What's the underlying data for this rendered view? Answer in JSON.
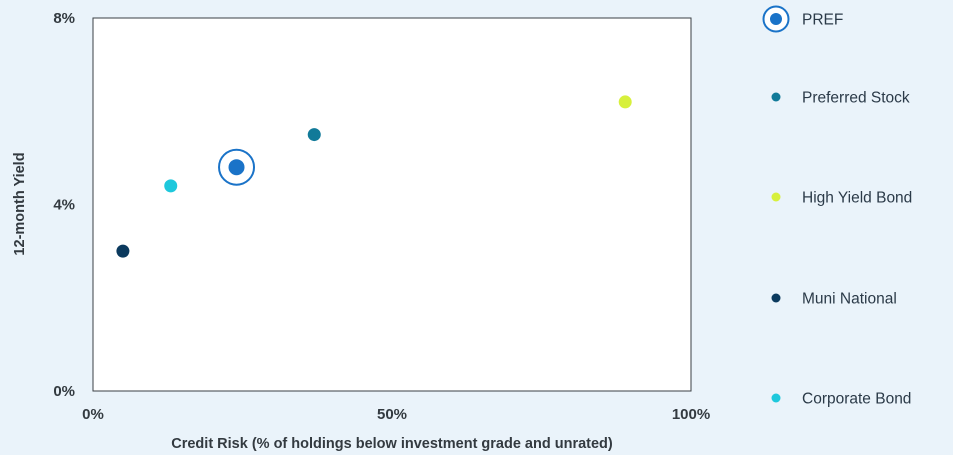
{
  "chart_data": {
    "type": "scatter",
    "title": "",
    "xlabel": "Credit Risk (% of holdings below investment grade and unrated)",
    "ylabel": "12-month Yield",
    "xlim": [
      0,
      100
    ],
    "ylim": [
      0,
      8
    ],
    "x_ticks": [
      {
        "value": 0,
        "label": "0%"
      },
      {
        "value": 50,
        "label": "50%"
      },
      {
        "value": 100,
        "label": "100%"
      }
    ],
    "y_ticks": [
      {
        "value": 0,
        "label": "0%"
      },
      {
        "value": 4,
        "label": "4%"
      },
      {
        "value": 8,
        "label": "8%"
      }
    ],
    "grid": false,
    "legend_position": "right",
    "series": [
      {
        "name": "PREF",
        "color": "#1a73c8",
        "marker": "ringed-dot",
        "points": [
          {
            "x": 24,
            "y": 4.8
          }
        ]
      },
      {
        "name": "Preferred Stock",
        "color": "#117a99",
        "marker": "dot",
        "points": [
          {
            "x": 37,
            "y": 5.5
          }
        ]
      },
      {
        "name": "High Yield Bond",
        "color": "#d7f03c",
        "marker": "dot",
        "points": [
          {
            "x": 89,
            "y": 6.2
          }
        ]
      },
      {
        "name": "Muni National",
        "color": "#0b3a5e",
        "marker": "dot",
        "points": [
          {
            "x": 5,
            "y": 3.0
          }
        ]
      },
      {
        "name": "Corporate Bond",
        "color": "#1ec8dc",
        "marker": "dot",
        "points": [
          {
            "x": 13,
            "y": 4.4
          }
        ]
      }
    ]
  }
}
